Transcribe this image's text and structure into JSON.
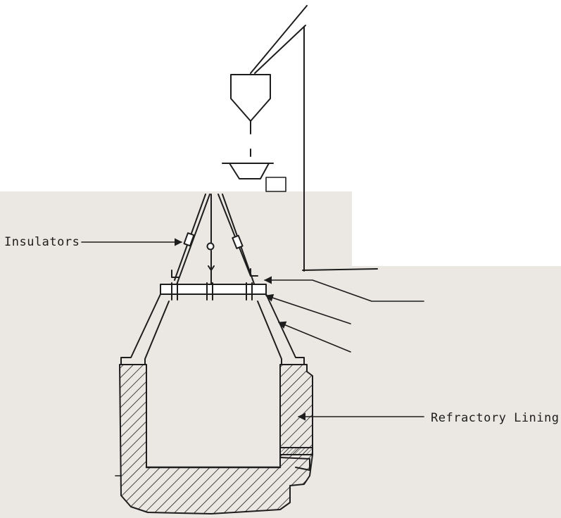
{
  "labels": {
    "insulators": "Insulators",
    "refractory_lining": "Refractory Lining"
  },
  "colors": {
    "ink": "#1d1d1d",
    "paper": "#ffffff",
    "background_shade": "#ebe8e3"
  }
}
